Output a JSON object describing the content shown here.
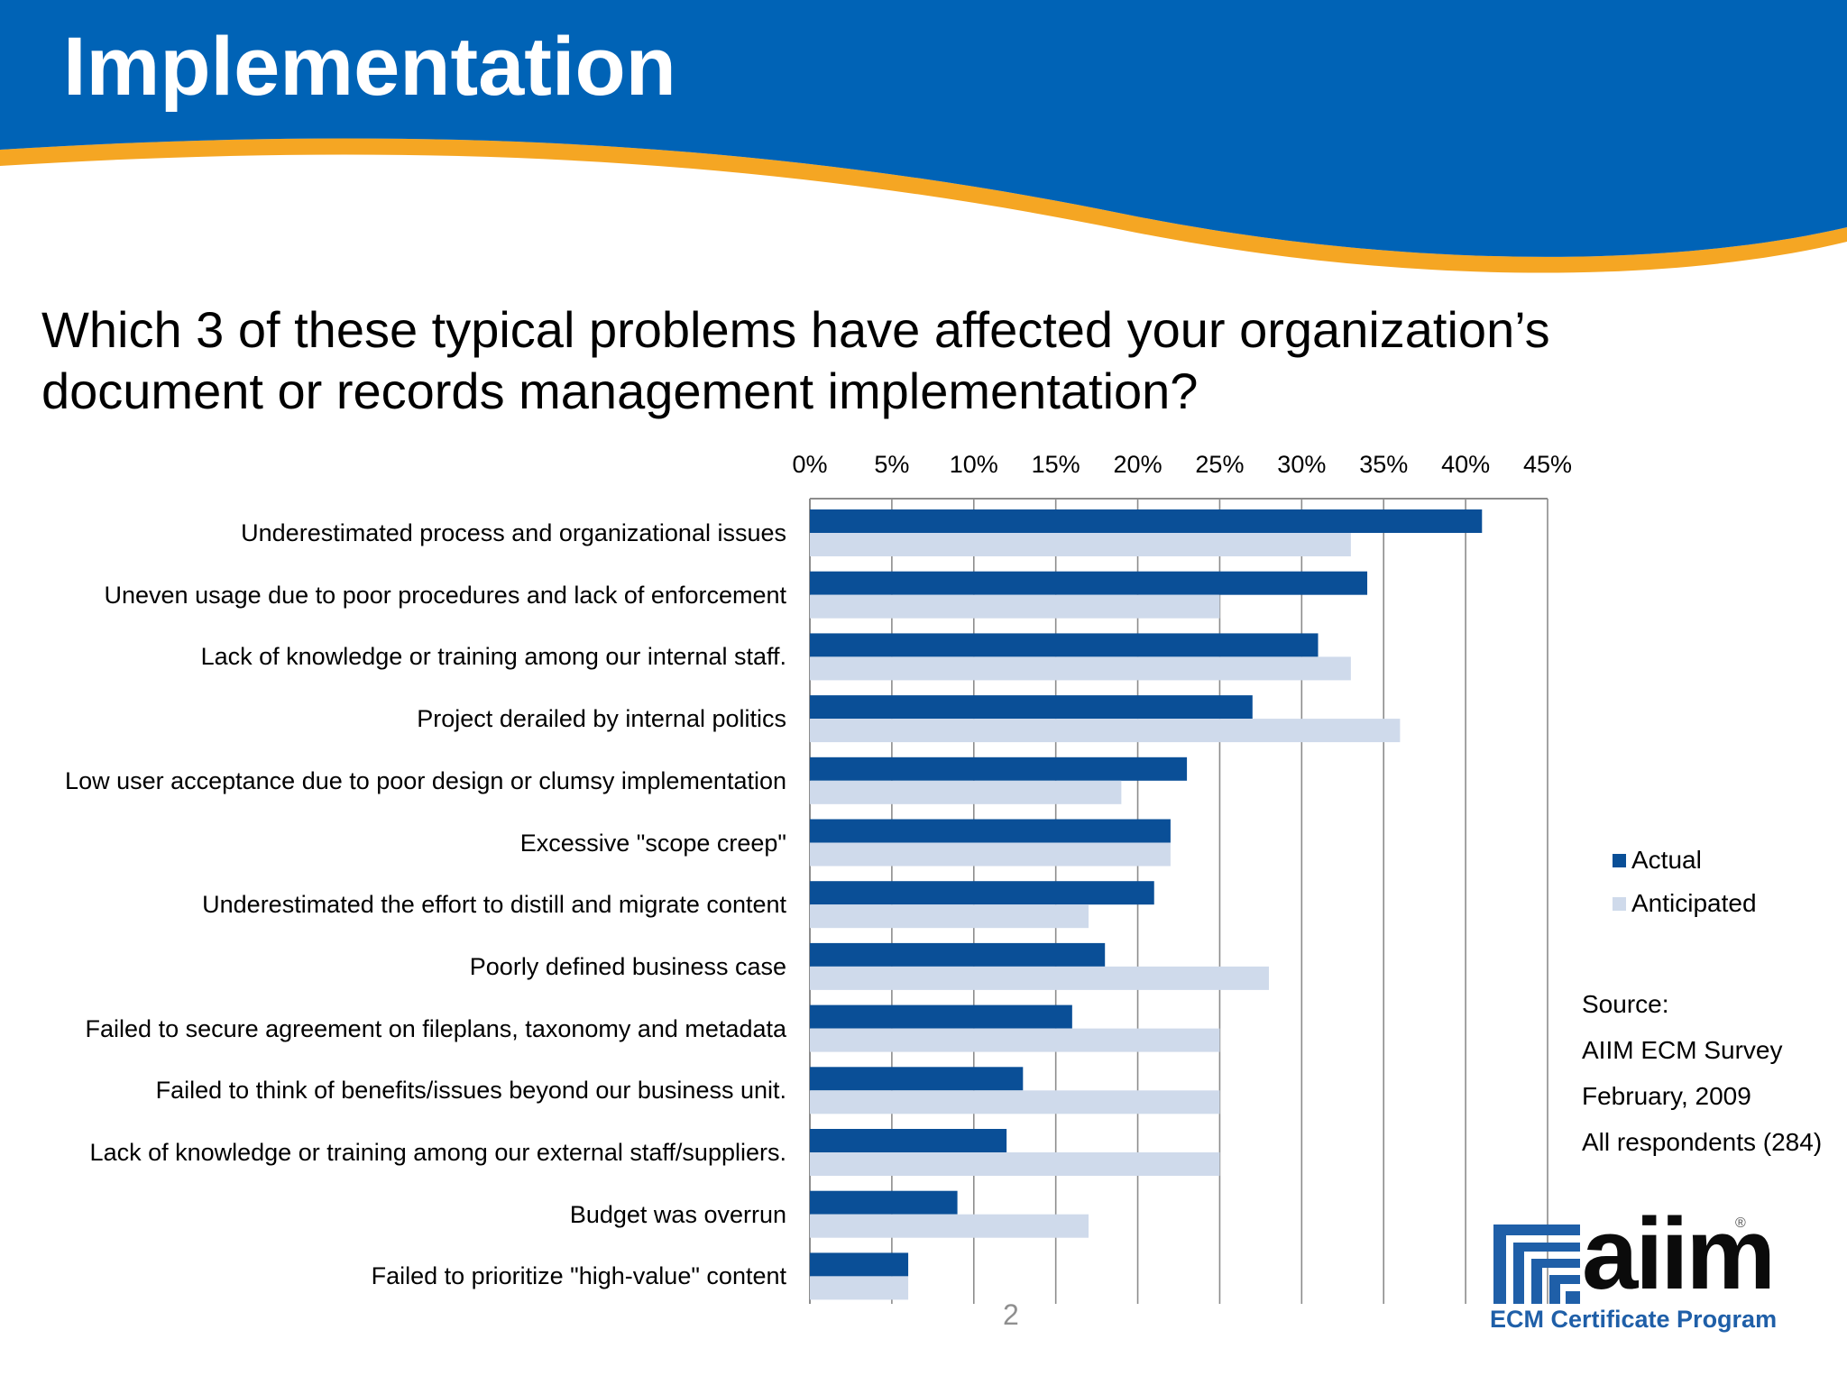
{
  "slide": {
    "title": "Implementation",
    "question": "Which 3 of these typical problems have affected your organization’s document or records management implementation?",
    "page_number": "2"
  },
  "colors": {
    "banner": "#0063b6",
    "swoosh": "#f5a623",
    "actual": "#0a4f97",
    "anticipated": "#cfdaeb",
    "grid": "#8c8c8c"
  },
  "chart_data": {
    "type": "bar",
    "orientation": "horizontal",
    "title": "",
    "xlabel": "",
    "ylabel": "",
    "xlim": [
      0,
      45
    ],
    "x_axis_position": "top",
    "x_ticks": [
      "0%",
      "5%",
      "10%",
      "15%",
      "20%",
      "25%",
      "30%",
      "35%",
      "40%",
      "45%"
    ],
    "grid": true,
    "legend": "right",
    "categories": [
      "Underestimated process and organizational issues",
      "Uneven usage due to poor procedures and lack of enforcement",
      "Lack of knowledge or training among our internal staff.",
      "Project derailed by internal politics",
      "Low user acceptance due to poor design or clumsy implementation",
      "Excessive \"scope creep\"",
      "Underestimated the effort to distill and migrate content",
      "Poorly defined business case",
      "Failed to secure agreement on fileplans, taxonomy and metadata",
      "Failed to think of benefits/issues beyond our business unit.",
      "Lack of knowledge or training among our external staff/suppliers.",
      "Budget was overrun",
      "Failed to prioritize \"high-value\" content"
    ],
    "series": [
      {
        "name": "Actual",
        "values": [
          41,
          34,
          31,
          27,
          23,
          22,
          21,
          18,
          16,
          13,
          12,
          9,
          6
        ]
      },
      {
        "name": "Anticipated",
        "values": [
          33,
          25,
          33,
          36,
          19,
          22,
          17,
          28,
          25,
          25,
          25,
          17,
          6
        ]
      }
    ]
  },
  "source": {
    "lines": [
      "Source:",
      "AIIM ECM Survey",
      "February, 2009",
      "All respondents (284)"
    ]
  },
  "logo": {
    "wordmark": "aiim",
    "registered": "®",
    "tagline": "ECM Certificate Program"
  }
}
